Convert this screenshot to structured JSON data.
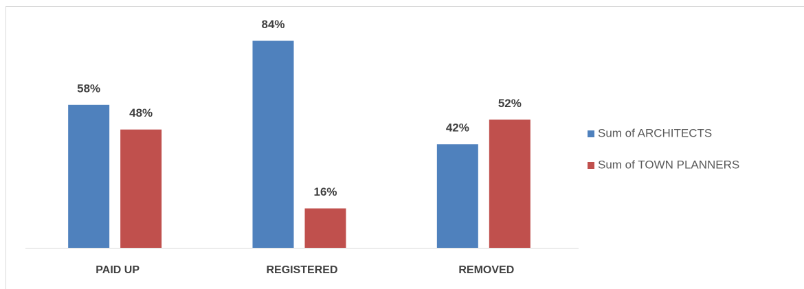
{
  "chart_data": {
    "type": "bar",
    "categories": [
      "PAID UP",
      "REGISTERED",
      "REMOVED"
    ],
    "series": [
      {
        "name": "Sum of ARCHITECTS",
        "color": "#4f81bd",
        "values": [
          58,
          84,
          42
        ],
        "value_labels": [
          "58%",
          "84%",
          "42%"
        ]
      },
      {
        "name": "Sum of TOWN PLANNERS",
        "color": "#c0504d",
        "values": [
          48,
          16,
          52
        ],
        "value_labels": [
          "48%",
          "16%",
          "52%"
        ]
      }
    ],
    "ylim": [
      0,
      100
    ],
    "grid": false,
    "legend": "right"
  }
}
